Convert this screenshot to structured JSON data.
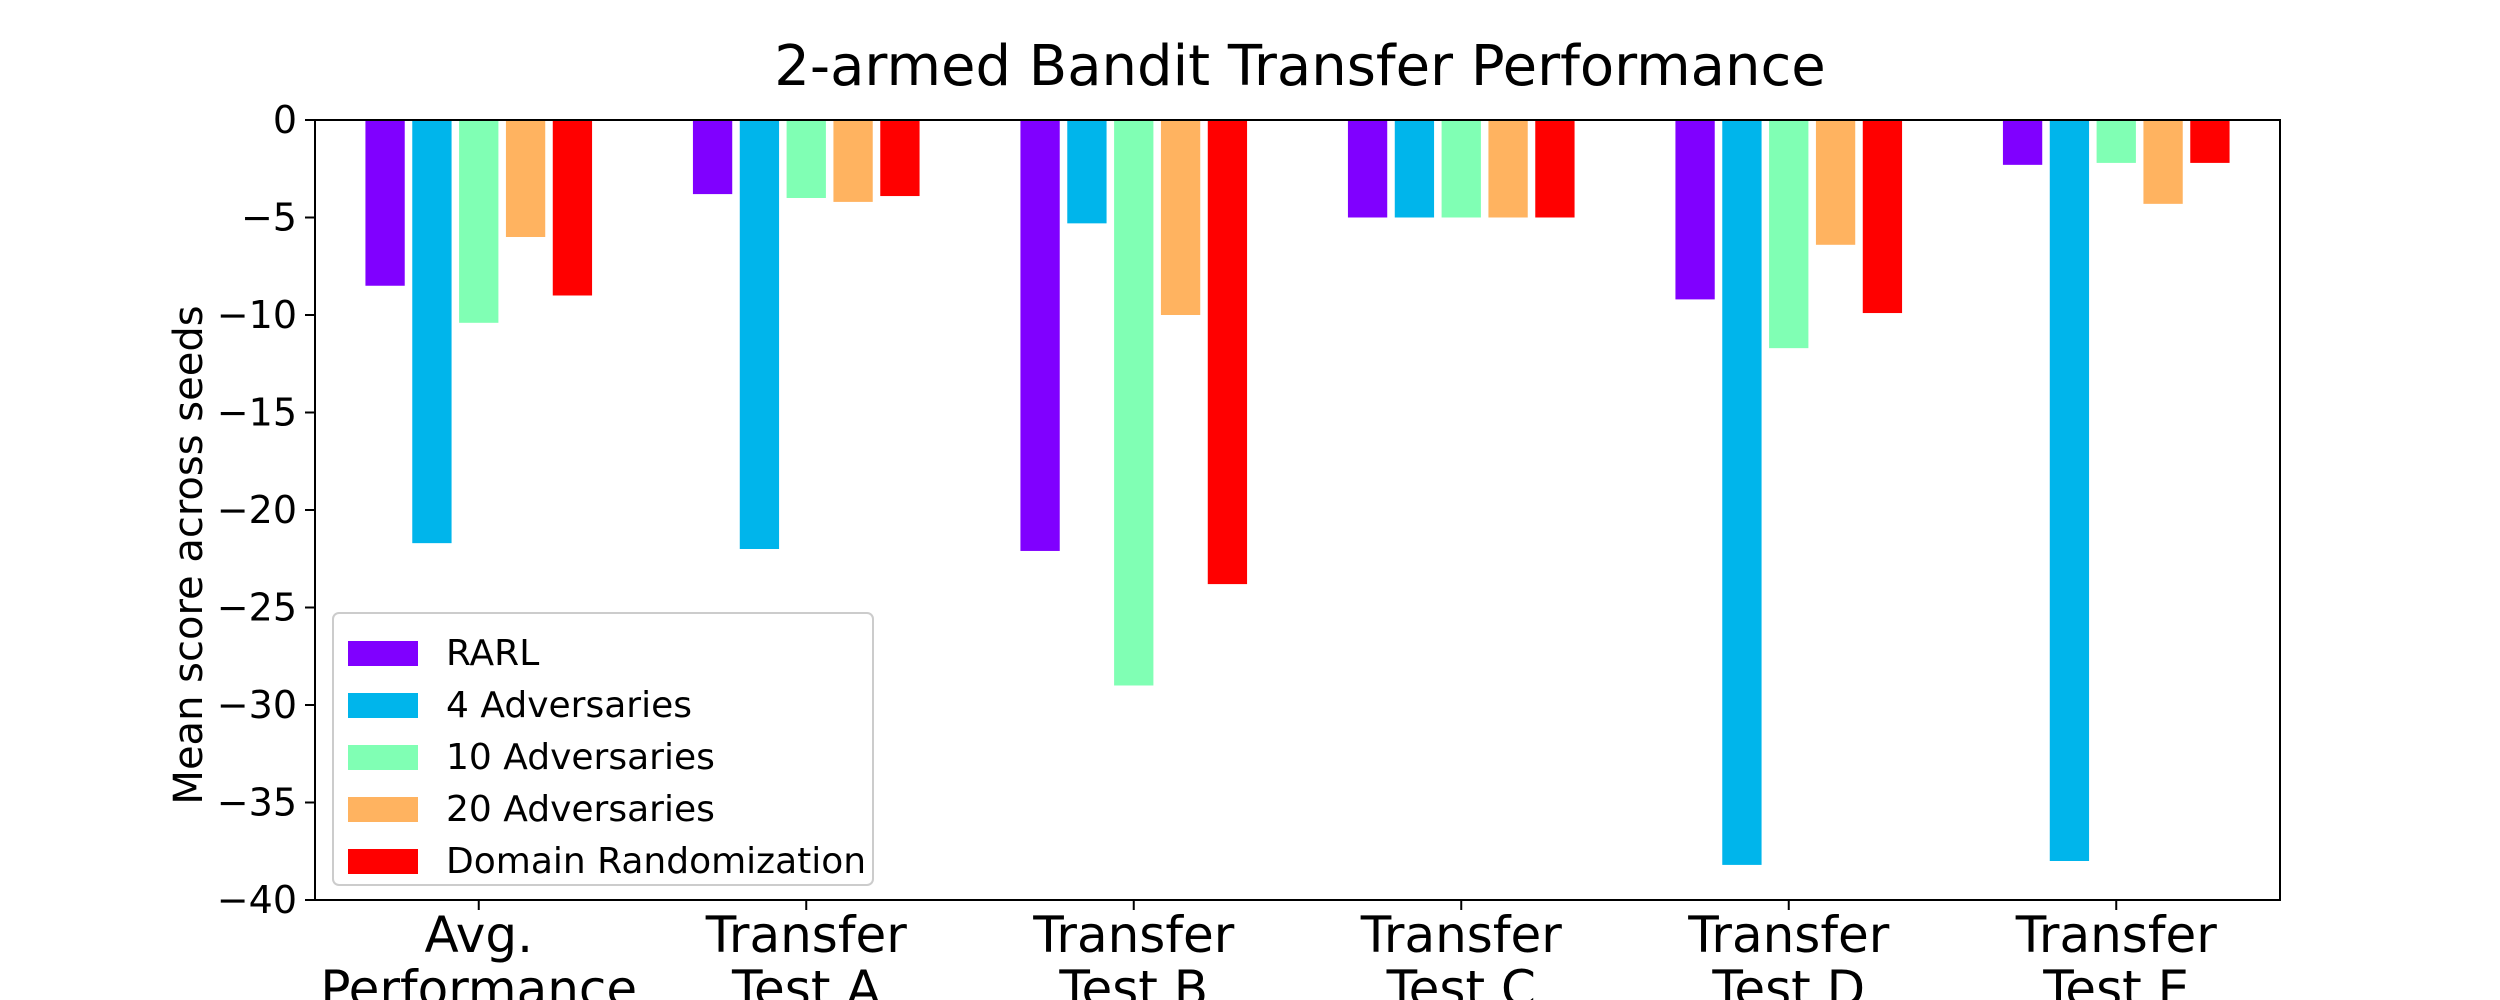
{
  "chart_data": {
    "type": "bar",
    "title": "2-armed Bandit Transfer Performance",
    "xlabel": "",
    "ylabel": "Mean score across seeds",
    "ylim": [
      -40,
      0
    ],
    "yticks": [
      "0",
      "−5",
      "−10",
      "−15",
      "−20",
      "−25",
      "−30",
      "−35",
      "−40"
    ],
    "categories": [
      [
        "Avg.",
        "Performance"
      ],
      [
        "Transfer",
        "Test A"
      ],
      [
        "Transfer",
        "Test B"
      ],
      [
        "Transfer",
        "Test C"
      ],
      [
        "Transfer",
        "Test D"
      ],
      [
        "Transfer",
        "Test E"
      ]
    ],
    "series": [
      {
        "name": "RARL",
        "color": "#8000ff",
        "values": [
          -8.5,
          -3.8,
          -22.1,
          -5.0,
          -9.2,
          -2.3
        ]
      },
      {
        "name": "4 Adversaries",
        "color": "#00b5eb",
        "values": [
          -21.7,
          -22.0,
          -5.3,
          -5.0,
          -38.2,
          -38.0
        ]
      },
      {
        "name": "10 Adversaries",
        "color": "#80ffb4",
        "values": [
          -10.4,
          -4.0,
          -29.0,
          -5.0,
          -11.7,
          -2.2
        ]
      },
      {
        "name": "20 Adversaries",
        "color": "#ffb360",
        "values": [
          -6.0,
          -4.2,
          -10.0,
          -5.0,
          -6.4,
          -4.3
        ]
      },
      {
        "name": "Domain Randomization",
        "color": "#ff0000",
        "values": [
          -9.0,
          -3.9,
          -23.8,
          -5.0,
          -9.9,
          -2.2
        ]
      }
    ],
    "grid": false,
    "legend_position": "lower-left"
  }
}
